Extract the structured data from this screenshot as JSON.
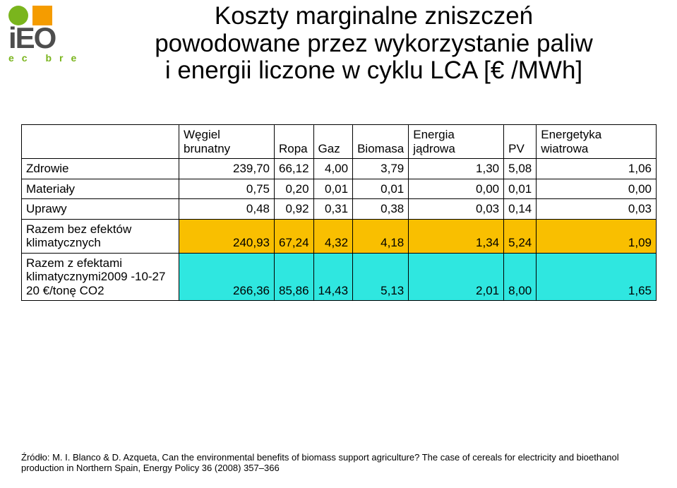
{
  "logo": {
    "text": "iEO",
    "sub": "ec bre",
    "circle_color": "#7ab51d",
    "square_color": "#f59c00"
  },
  "title_lines": [
    "Koszty marginalne zniszczeń",
    "powodowane przez wykorzystanie paliw",
    "i energii liczone w  cyklu LCA [€ /MWh]"
  ],
  "table": {
    "columns": [
      "Węgiel brunatny",
      "Ropa",
      "Gaz",
      "Biomasa",
      "Energia jądrowa",
      "PV",
      "Energetyka wiatrowa"
    ],
    "highlight_bg": {
      "yellow": "#f9bf00",
      "cyan": "#2fe7e0"
    },
    "rows": [
      {
        "label": "Zdrowie",
        "cells": [
          "239,70",
          "66,12",
          "4,00",
          "3,79",
          "1,30",
          "5,08",
          "1,06"
        ],
        "highlight": null
      },
      {
        "label": "Materiały",
        "cells": [
          "0,75",
          "0,20",
          "0,01",
          "0,01",
          "0,00",
          "0,01",
          "0,00"
        ],
        "highlight": null
      },
      {
        "label": "Uprawy",
        "cells": [
          "0,48",
          "0,92",
          "0,31",
          "0,38",
          "0,03",
          "0,14",
          "0,03"
        ],
        "highlight": null
      },
      {
        "label": "Razem bez efektów klimatycznych",
        "cells": [
          "240,93",
          "67,24",
          "4,32",
          "4,18",
          "1,34",
          "5,24",
          "1,09"
        ],
        "highlight": "yellow"
      },
      {
        "label": "Razem z efektami klimatycznymi2009 -10-27 20 €/tonę CO2",
        "cells": [
          "266,36",
          "85,86",
          "14,43",
          "5,13",
          "2,01",
          "8,00",
          "1,65"
        ],
        "highlight": "cyan"
      }
    ]
  },
  "footnote": "Źródło: M. I. Blanco & D. Azqueta, Can the environmental benefits of biomass support agriculture? The case of cereals for electricity and bioethanol production in Northern Spain, Energy Policy 36 (2008) 357–366"
}
